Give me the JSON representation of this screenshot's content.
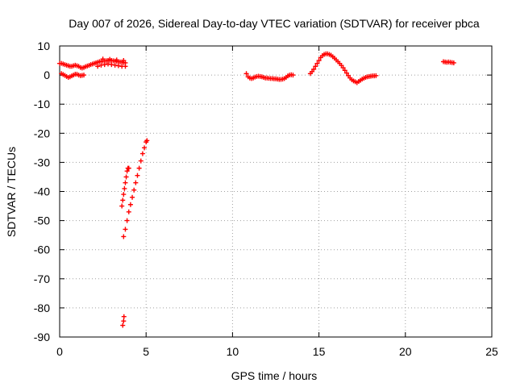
{
  "chart_data": {
    "type": "scatter",
    "title": "Day 007 of 2026, Sidereal Day-to-day VTEC variation (SDTVAR) for receiver pbca",
    "xlabel": "GPS time / hours",
    "ylabel": "SDTVAR / TECUs",
    "xlim": [
      0,
      25
    ],
    "ylim": [
      -90,
      10
    ],
    "xticks": [
      0,
      5,
      10,
      15,
      20,
      25
    ],
    "yticks": [
      10,
      0,
      -10,
      -20,
      -30,
      -40,
      -50,
      -60,
      -70,
      -80,
      -90
    ],
    "grid": true,
    "marker": "plus",
    "color": "#ff0000",
    "series": [
      {
        "x": [
          0.0,
          0.1,
          0.2,
          0.3,
          0.4,
          0.5,
          0.6,
          0.7,
          0.8,
          0.9,
          1.0,
          1.1,
          1.2,
          1.3,
          1.4,
          1.5,
          1.6,
          1.7,
          1.8,
          1.9,
          2.0,
          2.1,
          2.2,
          2.3,
          2.4,
          2.5,
          2.6,
          2.7,
          2.8,
          2.9,
          3.0,
          3.1,
          3.2,
          3.3,
          3.4,
          3.5,
          3.6,
          3.7,
          3.8,
          0.1,
          0.2,
          0.3,
          0.4,
          0.5,
          0.6,
          0.7,
          0.8,
          0.9,
          1.0,
          1.1,
          1.2,
          1.3,
          1.4,
          2.2,
          2.4,
          2.6,
          2.8,
          3.0,
          3.2,
          3.4,
          3.6,
          3.8,
          2.5,
          2.9,
          3.3,
          3.7,
          3.6,
          3.65,
          3.7,
          3.75,
          3.8,
          3.85,
          3.9,
          3.95,
          4.0,
          3.7,
          3.8,
          3.9,
          4.0,
          4.1,
          4.2,
          4.3,
          4.4,
          4.5,
          4.6,
          4.7,
          4.8,
          4.9,
          5.0,
          5.05,
          3.65,
          3.7,
          3.72,
          10.8,
          10.9,
          11.0,
          11.1,
          11.2,
          11.3,
          11.4,
          11.5,
          11.6,
          11.7,
          11.8,
          11.9,
          12.0,
          12.1,
          12.2,
          12.3,
          12.4,
          12.5,
          12.6,
          12.7,
          12.8,
          12.9,
          13.0,
          13.1,
          13.2,
          13.3,
          13.4,
          13.5,
          14.5,
          14.6,
          14.7,
          14.8,
          14.9,
          15.0,
          15.1,
          15.2,
          15.3,
          15.4,
          15.5,
          15.6,
          15.7,
          15.8,
          15.9,
          16.0,
          16.1,
          16.2,
          16.3,
          16.4,
          16.5,
          16.6,
          16.7,
          16.8,
          16.9,
          17.0,
          17.1,
          17.2,
          17.3,
          17.4,
          17.5,
          17.6,
          17.7,
          17.8,
          17.9,
          18.0,
          18.1,
          18.2,
          18.3,
          22.2,
          22.3,
          22.4,
          22.5,
          22.6,
          22.7,
          22.8
        ],
        "y": [
          4.0,
          4.0,
          3.8,
          3.6,
          3.4,
          3.2,
          3.0,
          3.0,
          3.2,
          3.4,
          3.2,
          3.0,
          2.6,
          2.4,
          2.6,
          2.9,
          3.1,
          3.3,
          3.6,
          3.8,
          4.0,
          4.2,
          4.4,
          4.6,
          4.7,
          4.8,
          4.9,
          4.9,
          5.0,
          5.0,
          5.0,
          4.9,
          4.8,
          4.7,
          4.6,
          4.5,
          4.5,
          4.3,
          4.2,
          0.5,
          0.2,
          -0.1,
          -0.5,
          -0.8,
          -0.6,
          -0.3,
          0.0,
          0.3,
          0.3,
          0.0,
          -0.2,
          -0.1,
          0.0,
          3.0,
          3.4,
          3.6,
          3.8,
          3.6,
          3.4,
          3.2,
          3.0,
          3.0,
          5.5,
          5.4,
          5.2,
          5.0,
          -45,
          -43,
          -41,
          -39,
          -37,
          -35,
          -33,
          -32,
          -32,
          -55.5,
          -53,
          -50,
          -47,
          -44.5,
          -42,
          -39.5,
          -37,
          -34.5,
          -32,
          -29.5,
          -27,
          -25,
          -23,
          -22.5,
          -86,
          -84.5,
          -83,
          0.5,
          -0.6,
          -1.0,
          -1.2,
          -1.0,
          -0.7,
          -0.5,
          -0.4,
          -0.5,
          -0.6,
          -0.8,
          -1.0,
          -1.0,
          -1.1,
          -1.2,
          -1.2,
          -1.3,
          -1.3,
          -1.4,
          -1.5,
          -1.5,
          -1.4,
          -1.2,
          -0.8,
          -0.3,
          0.0,
          0.1,
          0.0,
          0.5,
          1.2,
          2.0,
          3.0,
          4.0,
          5.0,
          6.0,
          6.7,
          7.1,
          7.3,
          7.3,
          7.1,
          6.8,
          6.3,
          5.8,
          5.2,
          4.6,
          4.0,
          3.3,
          2.5,
          1.6,
          0.7,
          -0.2,
          -1.0,
          -1.6,
          -2.0,
          -2.3,
          -2.6,
          -2.2,
          -1.8,
          -1.4,
          -1.1,
          -0.8,
          -0.6,
          -0.5,
          -0.4,
          -0.3,
          -0.3,
          -0.2,
          4.6,
          4.5,
          4.4,
          4.5,
          4.4,
          4.3,
          4.2
        ]
      }
    ]
  }
}
